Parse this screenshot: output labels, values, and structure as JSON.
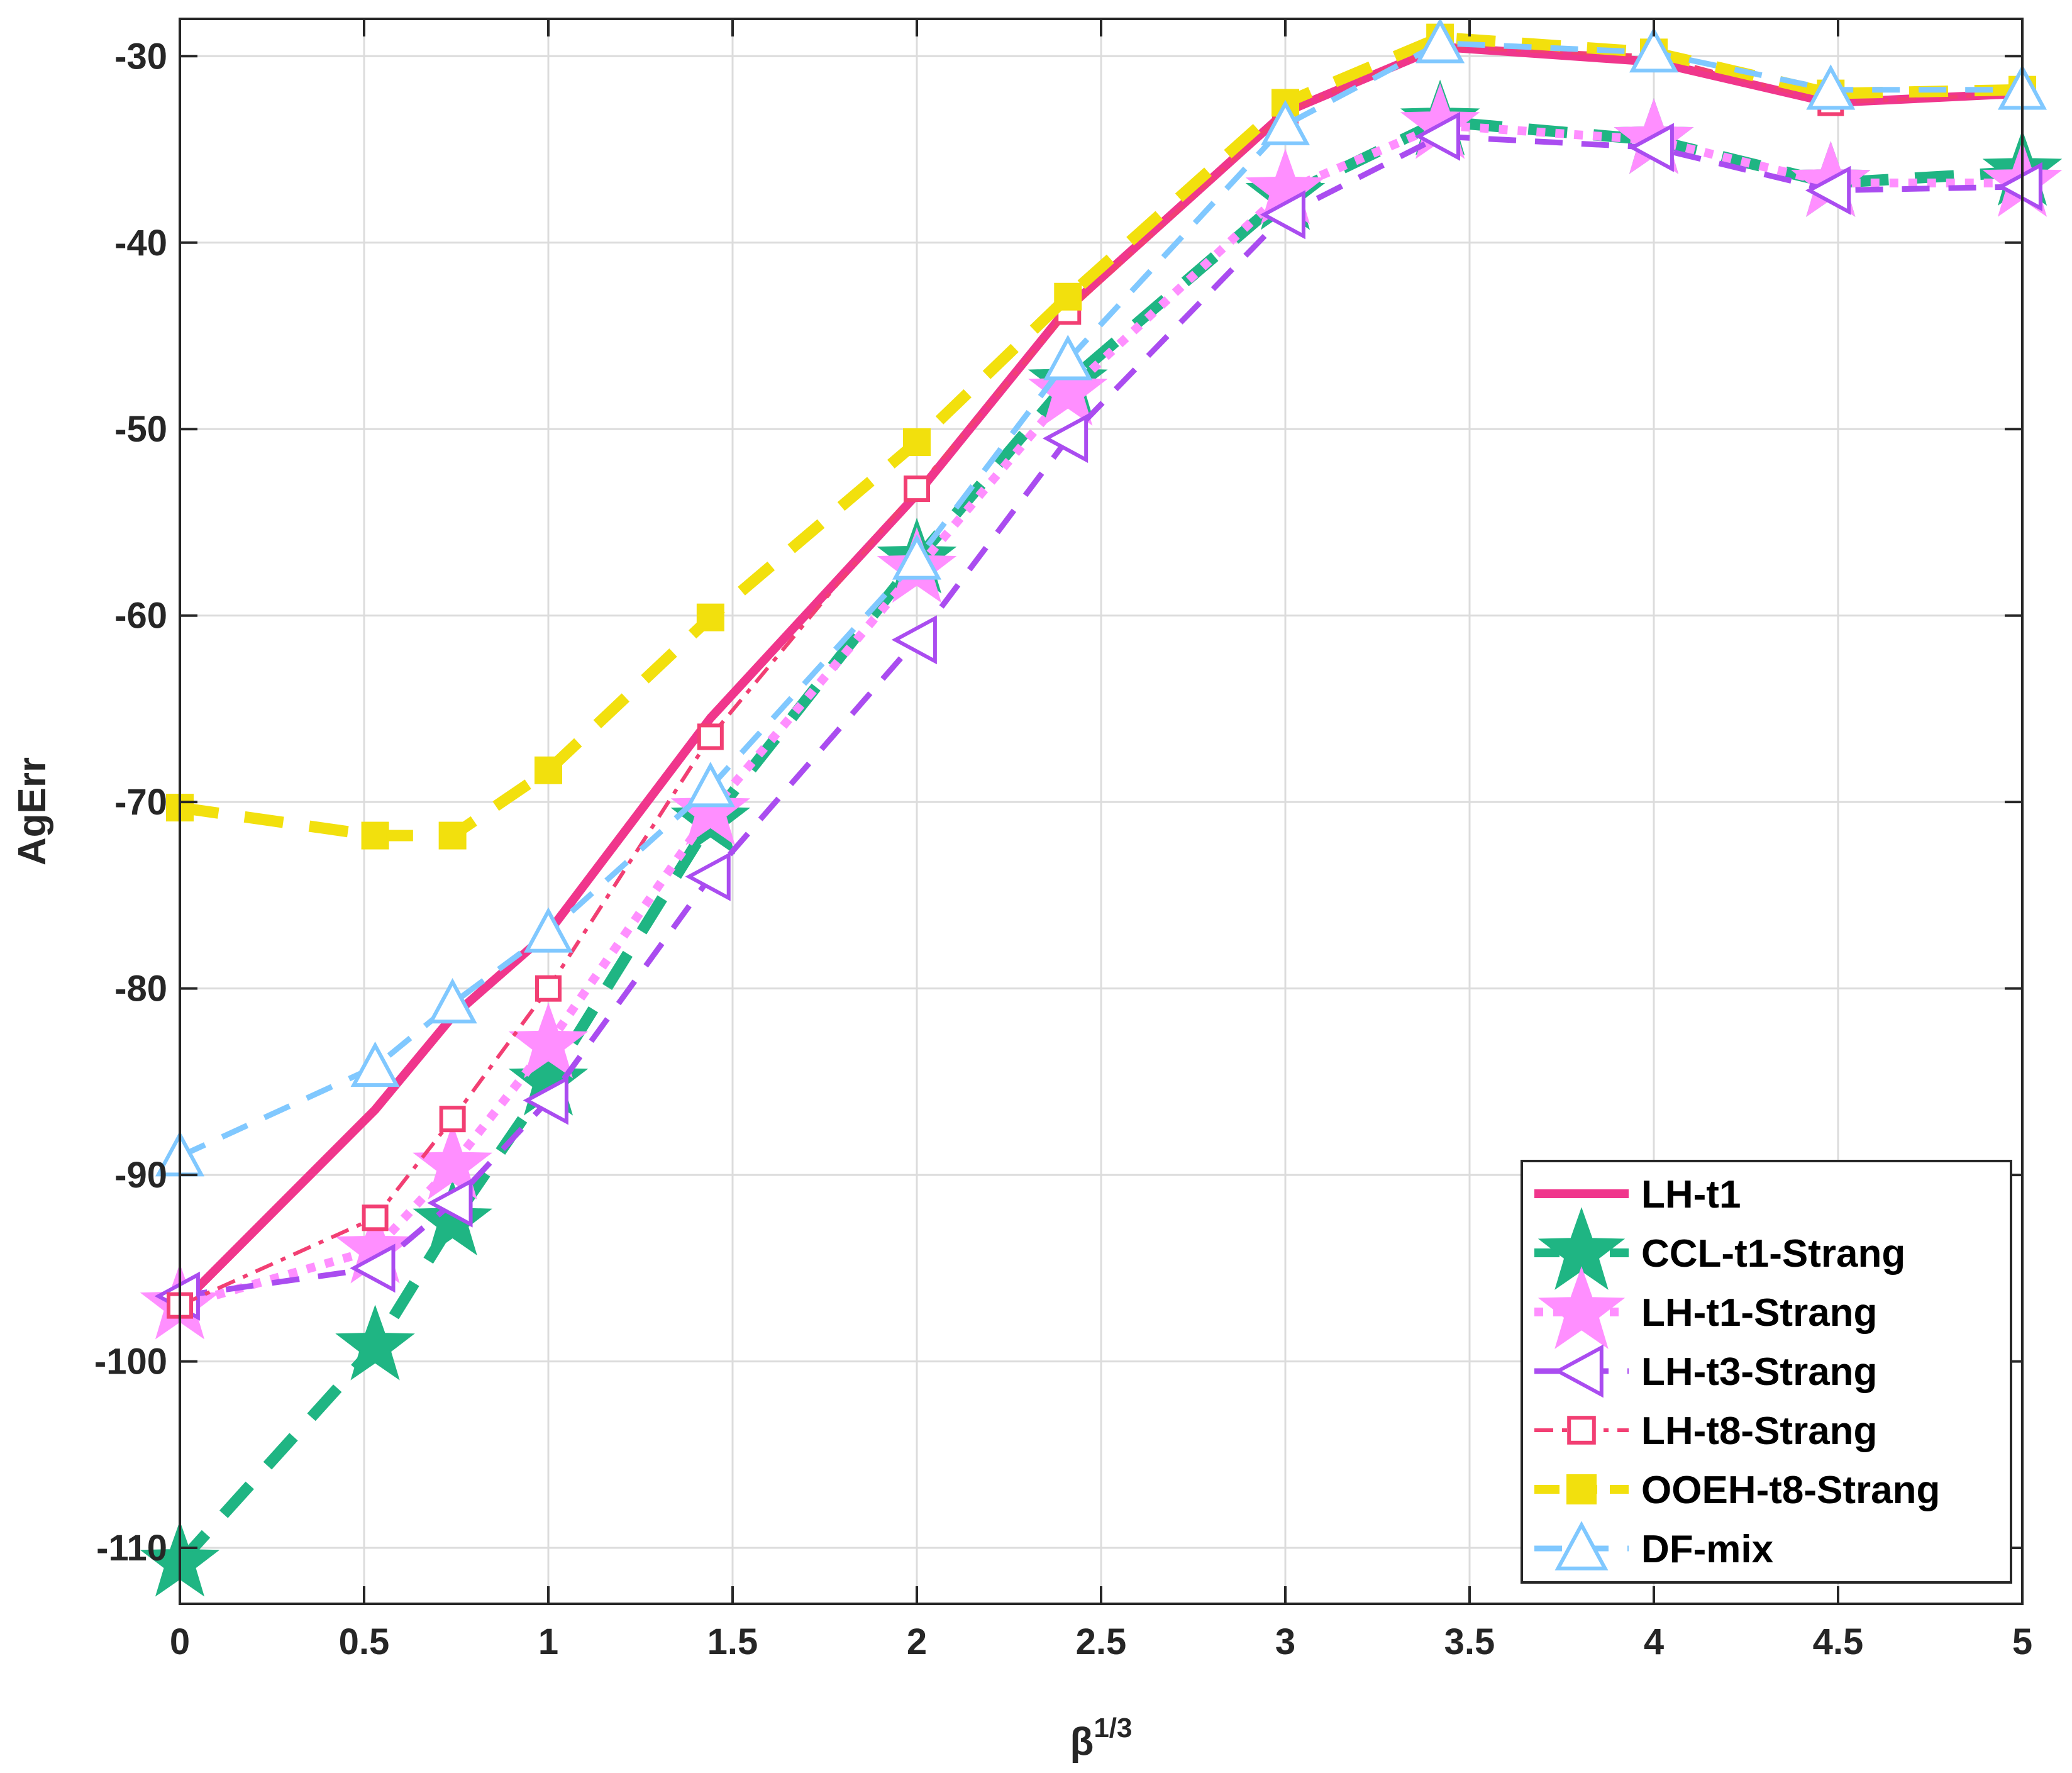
{
  "chart_data": {
    "type": "line",
    "title": "",
    "xlabel": "β",
    "xlabel_sup": "1/3",
    "ylabel": "AgErr",
    "xlim": [
      0,
      5
    ],
    "ylim": [
      -113,
      -28
    ],
    "xticks": [
      0,
      0.5,
      1,
      1.5,
      2,
      2.5,
      3,
      3.5,
      4,
      4.5,
      5
    ],
    "xtick_labels": [
      "0",
      "0.5",
      "1",
      "1.5",
      "2",
      "2.5",
      "3",
      "3.5",
      "4",
      "4.5",
      "5"
    ],
    "yticks": [
      -110,
      -100,
      -90,
      -80,
      -70,
      -60,
      -50,
      -40,
      -30
    ],
    "ytick_labels": [
      "-110",
      "-100",
      "-90",
      "-80",
      "-70",
      "-60",
      "-50",
      "-40",
      "-30"
    ],
    "grid": true,
    "legend_position": "bottom-right",
    "x": [
      0,
      0.53,
      0.74,
      1.0,
      1.44,
      2.0,
      2.41,
      3.0,
      3.42,
      4.0,
      4.48,
      5.0
    ],
    "series": [
      {
        "name": "LH-t1",
        "color": "#f0368c",
        "line": "solid",
        "marker": "none",
        "values": [
          -97.0,
          -86.5,
          -81.5,
          -77.0,
          -65.5,
          -53.5,
          -43.5,
          -33.0,
          -29.5,
          -30.3,
          -32.5,
          -32.0
        ]
      },
      {
        "name": "CCL-t1-Strang",
        "color": "#1fb583",
        "line": "dashed-heavy",
        "marker": "star-filled",
        "values": [
          -110.8,
          -99.2,
          -92.5,
          -85.0,
          -71.0,
          -57.0,
          -47.5,
          -37.5,
          -33.5,
          -34.5,
          -36.8,
          -36.2
        ]
      },
      {
        "name": "LH-t1-Strang",
        "color": "#ff8fff",
        "line": "dotted",
        "marker": "star-filled",
        "values": [
          -97.0,
          -94.0,
          -89.5,
          -83.0,
          -70.5,
          -57.5,
          -48.0,
          -37.2,
          -33.7,
          -34.5,
          -36.8,
          -36.8
        ]
      },
      {
        "name": "LH-t3-Strang",
        "color": "#aa4cf0",
        "line": "dashed",
        "marker": "triangle-left",
        "values": [
          -96.5,
          -95.0,
          -91.5,
          -86.0,
          -74.0,
          -61.3,
          -50.5,
          -38.5,
          -34.3,
          -34.9,
          -37.2,
          -37.0
        ]
      },
      {
        "name": "LH-t8-Strang",
        "color": "#f23f73",
        "line": "dash-dot",
        "marker": "square-open",
        "values": [
          -97.0,
          -92.3,
          -87.0,
          -80.0,
          -66.5,
          -53.2,
          -43.7,
          -33.0,
          -29.5,
          -30.0,
          -32.5,
          -32.0
        ]
      },
      {
        "name": "OOEH-t8-Strang",
        "color": "#f2e00d",
        "line": "dashed-heavy",
        "marker": "square-filled",
        "values": [
          -70.3,
          -71.8,
          -71.8,
          -68.3,
          -60.1,
          -50.7,
          -42.9,
          -32.5,
          -29.0,
          -29.8,
          -32.0,
          -31.8
        ]
      },
      {
        "name": "DF-mix",
        "color": "#80c8ff",
        "line": "dashed",
        "marker": "triangle-up",
        "values": [
          -89.0,
          -84.2,
          -80.8,
          -77.0,
          -69.2,
          -57.0,
          -46.3,
          -33.7,
          -29.3,
          -29.8,
          -31.8,
          -31.8
        ]
      }
    ]
  }
}
